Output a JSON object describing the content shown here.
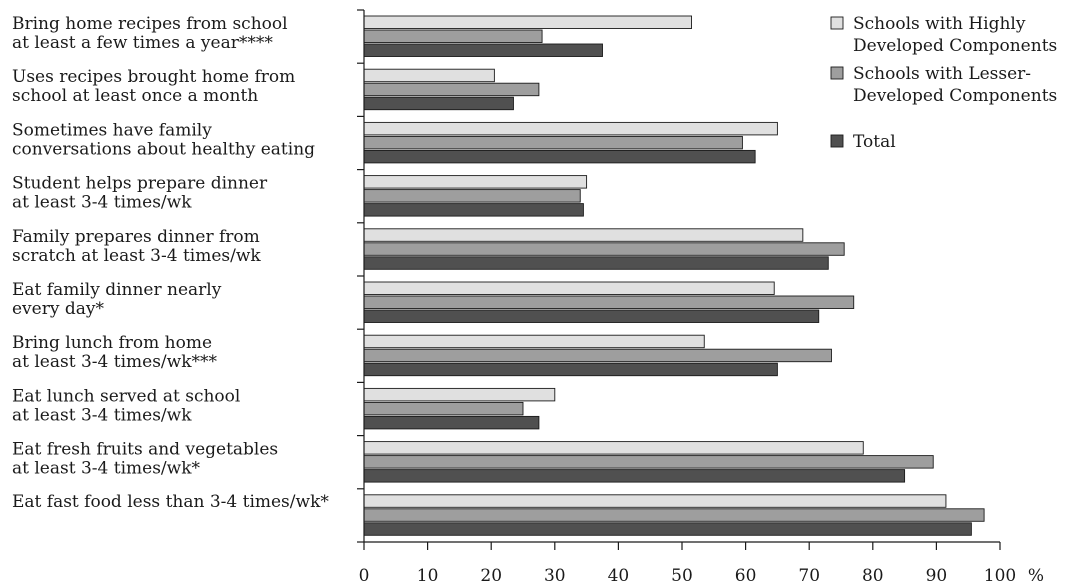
{
  "chart_data": {
    "type": "bar",
    "orientation": "horizontal",
    "categories": [
      [
        "Bring home recipes from school",
        "at least a few times a year****"
      ],
      [
        "Uses recipes brought home from",
        "school at least once a month"
      ],
      [
        "Sometimes have family",
        "conversations about healthy eating"
      ],
      [
        "Student helps prepare dinner",
        "at least 3-4 times/wk"
      ],
      [
        "Family prepares dinner from",
        "scratch at least 3-4 times/wk"
      ],
      [
        "Eat family dinner nearly",
        "every day*"
      ],
      [
        "Bring lunch from home",
        "at least 3-4 times/wk***"
      ],
      [
        "Eat lunch served at school",
        "at least 3-4 times/wk"
      ],
      [
        "Eat fresh fruits and vegetables",
        "at least 3-4 times/wk*"
      ],
      [
        "Eat fast food less than 3-4 times/wk*"
      ]
    ],
    "series": [
      {
        "name": [
          "Schools with Highly",
          "Developed Components"
        ],
        "color": "#e0e0e0",
        "values": [
          51.5,
          20.5,
          65,
          35,
          69,
          64.5,
          53.5,
          30,
          78.5,
          91.5
        ]
      },
      {
        "name": [
          "Schools with Lesser-",
          "Developed Components"
        ],
        "color": "#9e9e9e",
        "values": [
          28,
          27.5,
          59.5,
          34,
          75.5,
          77,
          73.5,
          25,
          89.5,
          97.5
        ]
      },
      {
        "name": [
          "Total"
        ],
        "color": "#505050",
        "values": [
          37.5,
          23.5,
          61.5,
          34.5,
          73,
          71.5,
          65,
          27.5,
          85,
          95.5
        ]
      }
    ],
    "xlim": [
      0,
      100
    ],
    "xticks": [
      "0",
      "10",
      "20",
      "30",
      "40",
      "50",
      "60",
      "70",
      "80",
      "90",
      "100"
    ],
    "xunit": "%",
    "grid": false,
    "legend_position": "top-right"
  }
}
